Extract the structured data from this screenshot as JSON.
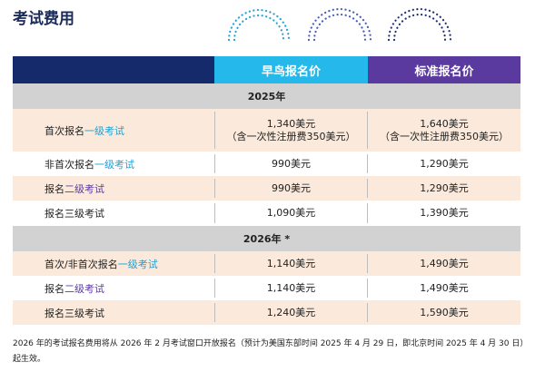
{
  "title": "考试费用",
  "headers": {
    "early": "早鸟报名价",
    "standard": "标准报名价"
  },
  "sections": [
    {
      "year": "2025年",
      "rows": [
        {
          "pre": "首次报名",
          "level": "一级考试",
          "level_class": "lvl1",
          "early": "1,340美元",
          "early_note": "（含一次性注册费350美元）",
          "standard": "1,640美元",
          "standard_note": "（含一次性注册费350美元）"
        },
        {
          "pre": "非首次报名",
          "level": "一级考试",
          "level_class": "lvl1",
          "early": "990美元",
          "standard": "1,290美元"
        },
        {
          "pre": "报名",
          "level": "二级考试",
          "level_class": "lvl2",
          "early": "990美元",
          "standard": "1,290美元"
        },
        {
          "pre": "报名三级考试",
          "level": "",
          "level_class": "",
          "early": "1,090美元",
          "standard": "1,390美元"
        }
      ]
    },
    {
      "year": "2026年 *",
      "rows": [
        {
          "pre": "首次/非首次报名",
          "level": "一级考试",
          "level_class": "lvl1",
          "early": "1,140美元",
          "standard": "1,490美元"
        },
        {
          "pre": "报名",
          "level": "二级考试",
          "level_class": "lvl2",
          "early": "1,140美元",
          "standard": "1,490美元"
        },
        {
          "pre": "报名三级考试",
          "level": "",
          "level_class": "",
          "early": "1,240美元",
          "standard": "1,590美元"
        }
      ]
    }
  ],
  "footnote": "2026 年的考试报名费用将从 2026 年 2 月考试窗口开放报名（预计为美国东部时间 2025 年 4 月 29 日，即北京时间 2025 年 4 月 30 日）起生效。",
  "colors": {
    "navy": "#142a6a",
    "early": "#25b8ea",
    "standard": "#5b3aa0",
    "cream": "#fbeadb",
    "gray": "#d2d2d2"
  },
  "icons": [
    "dotted-arc-icon"
  ]
}
